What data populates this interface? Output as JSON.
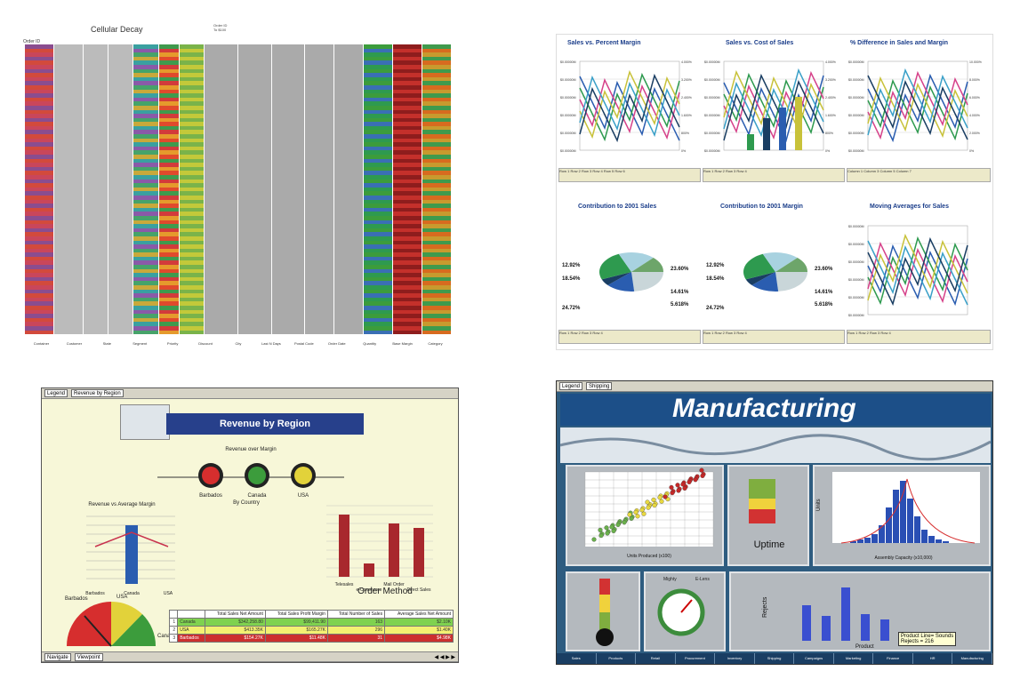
{
  "q1": {
    "title": "Cellular Decay",
    "header_top": "Order ID",
    "header_sub": "To $100",
    "order_id_label": "Order ID",
    "columns": [
      "Container",
      "Customer",
      "State",
      "Segment",
      "Priority",
      "Discount",
      "City",
      "Last N Days",
      "Postal Code",
      "Order Date",
      "Quantity",
      "Base Margin",
      "Category"
    ]
  },
  "q2": {
    "titles": [
      "Sales vs. Percent Margin",
      "Sales vs. Cost of Sales",
      "% Difference in Sales and Margin",
      "Contribution to 2001 Sales",
      "Contribution to 2001 Margin",
      "Moving Averages for Sales"
    ],
    "y_left": [
      "$0.00000M",
      "$0.00000M",
      "$0.00000M",
      "$0.00000M",
      "$0.00000M",
      "$0.00000M"
    ],
    "y_right1": [
      "4.000%",
      "3.200%",
      "2.400%",
      "1.600%",
      "800%",
      "0%"
    ],
    "y_right3": [
      "10.000%",
      "8.000%",
      "6.000%",
      "4.000%",
      "2.000%",
      "0%"
    ],
    "pie1": [
      "12.92%",
      "18.54%",
      "24.72%",
      "23.60%",
      "14.61%",
      "5.618%"
    ],
    "pie2": [
      "12.92%",
      "18.54%",
      "24.72%",
      "23.60%",
      "14.61%",
      "5.618%"
    ],
    "legend": [
      "Row 1",
      "Row 2",
      "Row 3",
      "Row 4",
      "Row 5",
      "Row 6"
    ],
    "col_labels": [
      "Column 1",
      "Column 3",
      "Column 5",
      "Column 7"
    ]
  },
  "q3": {
    "legend_label": "Legend",
    "region_label": "Revenue by Region",
    "banner": "Revenue by Region",
    "margin_title": "Revenue over Margin",
    "countries": [
      "Barbados",
      "Canada",
      "USA"
    ],
    "by_country": "By Country",
    "rev_title": "Revenue vs\nAverage Margin",
    "bar_xlabels": [
      "Barbados",
      "Canada",
      "USA"
    ],
    "order_method": "Order Method",
    "order_xlabels": [
      "Telesales",
      "e-Commerce",
      "Mail Order",
      "Direct Sales"
    ],
    "gauge_labels": [
      "Barbados",
      "USA",
      "Canada"
    ],
    "table_headers": [
      "Total Sales Net Amount",
      "Total Sales Profit Margin",
      "Total Number of Sales",
      "Average Sales Net Amount"
    ],
    "table_rows": [
      {
        "n": "1",
        "name": "Canada",
        "a": "$342,258.80",
        "b": "$99,411.90",
        "c": "163",
        "d": "$2.10K"
      },
      {
        "n": "2",
        "name": "USA",
        "a": "$413.35K",
        "b": "$165.27K",
        "c": "296",
        "d": "$1.40K"
      },
      {
        "n": "3",
        "name": "Barbados",
        "a": "$154.27K",
        "b": "$11.48K",
        "c": "31",
        "d": "$4.98K"
      }
    ],
    "nav_label": "Navigate",
    "viewpoint_label": "Viewpoint"
  },
  "q4": {
    "legend_label": "Legend",
    "shipping_label": "Shipping",
    "title": "Manufacturing",
    "scatter_x": "Units Produced (x100)",
    "uptime": "Uptime",
    "hist_x": "Assembly Capacity (x10,000)",
    "hist_y": "Units",
    "rejects_y": "Rejects",
    "gauge_labels": [
      "Mighty",
      "E-Lens"
    ],
    "tooltip_line1": "Product Line= Sounds",
    "tooltip_line2": "Rejects   = 216",
    "product_label": "Product",
    "nav": [
      "Sales",
      "Products",
      "Retail",
      "Procurement",
      "Inventory",
      "Shipping",
      "Campaigns",
      "Marketing",
      "Finance",
      "HR",
      "Manufacturing"
    ]
  }
}
